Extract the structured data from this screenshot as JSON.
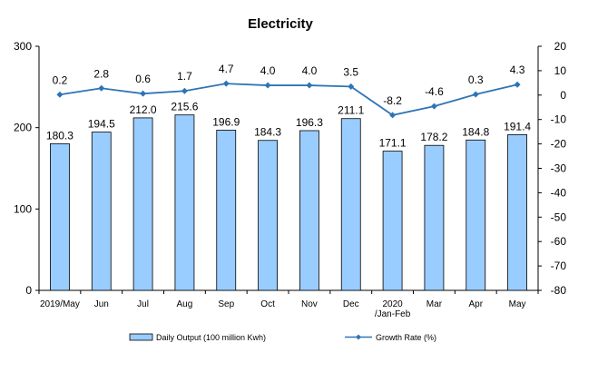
{
  "chart_data": {
    "type": "bar",
    "title": "Electricity",
    "categories": [
      "2019/May",
      "Jun",
      "Jul",
      "Aug",
      "Sep",
      "Oct",
      "Nov",
      "Dec",
      "2020\n/Jan-Feb",
      "Mar",
      "Apr",
      "May"
    ],
    "series": [
      {
        "name": "Daily Output (100 million Kwh)",
        "type": "bar",
        "axis": "left",
        "color": "#99ccff",
        "values": [
          180.3,
          194.5,
          212.0,
          215.6,
          196.9,
          184.3,
          196.3,
          211.1,
          171.1,
          178.2,
          184.8,
          191.4
        ],
        "labels": [
          "180.3",
          "194.5",
          "212.0",
          "215.6",
          "196.9",
          "184.3",
          "196.3",
          "211.1",
          "171.1",
          "178.2",
          "184.8",
          "191.4"
        ]
      },
      {
        "name": "Growth Rate (%)",
        "type": "line",
        "axis": "right",
        "color": "#2e74b5",
        "values": [
          0.2,
          2.8,
          0.6,
          1.7,
          4.7,
          4.0,
          4.0,
          3.5,
          -8.2,
          -4.6,
          0.3,
          4.3
        ],
        "labels": [
          "0.2",
          "2.8",
          "0.6",
          "1.7",
          "4.7",
          "4.0",
          "4.0",
          "3.5",
          "-8.2",
          "-4.6",
          "0.3",
          "4.3"
        ]
      }
    ],
    "y_left": {
      "min": 0,
      "max": 300,
      "ticks": [
        "0",
        "100",
        "200",
        "300"
      ]
    },
    "y_right": {
      "min": -80,
      "max": 20,
      "ticks": [
        "20",
        "10",
        "0",
        "-10",
        "-20",
        "-30",
        "-40",
        "-50",
        "-60",
        "-70",
        "-80"
      ]
    },
    "grid": false,
    "legend": "bottom"
  }
}
